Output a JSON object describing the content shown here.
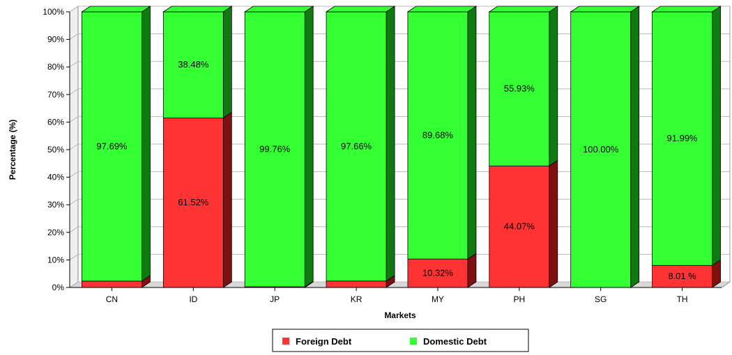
{
  "chart_data": {
    "type": "bar",
    "stacked": true,
    "percent": true,
    "three_d": true,
    "categories": [
      "CN",
      "ID",
      "JP",
      "KR",
      "MY",
      "PH",
      "SG",
      "TH"
    ],
    "series": [
      {
        "name": "Foreign Debt",
        "color": "#ff3333",
        "side_color": "#7f1010",
        "values": [
          2.31,
          61.52,
          0.24,
          2.34,
          10.32,
          44.07,
          0.0,
          8.01
        ],
        "labels": [
          "",
          "61.52%",
          "",
          "",
          "10.32%",
          "44.07%",
          "",
          "8.01 %"
        ]
      },
      {
        "name": "Domestic Debt",
        "color": "#33ff33",
        "side_color": "#0f7a0f",
        "values": [
          97.69,
          38.48,
          99.76,
          97.66,
          89.68,
          55.93,
          100.0,
          91.99
        ],
        "labels": [
          "97.69%",
          "38.48%",
          "99.76%",
          "97.66%",
          "89.68%",
          "55.93%",
          "100.00%",
          "91.99%"
        ]
      }
    ],
    "ylim": [
      0,
      100
    ],
    "yticks": [
      "0%",
      "10%",
      "20%",
      "30%",
      "40%",
      "50%",
      "60%",
      "70%",
      "80%",
      "90%",
      "100%"
    ],
    "xlabel": "Markets",
    "ylabel": "Percentage (%)",
    "grid": true,
    "legend_position": "bottom"
  }
}
